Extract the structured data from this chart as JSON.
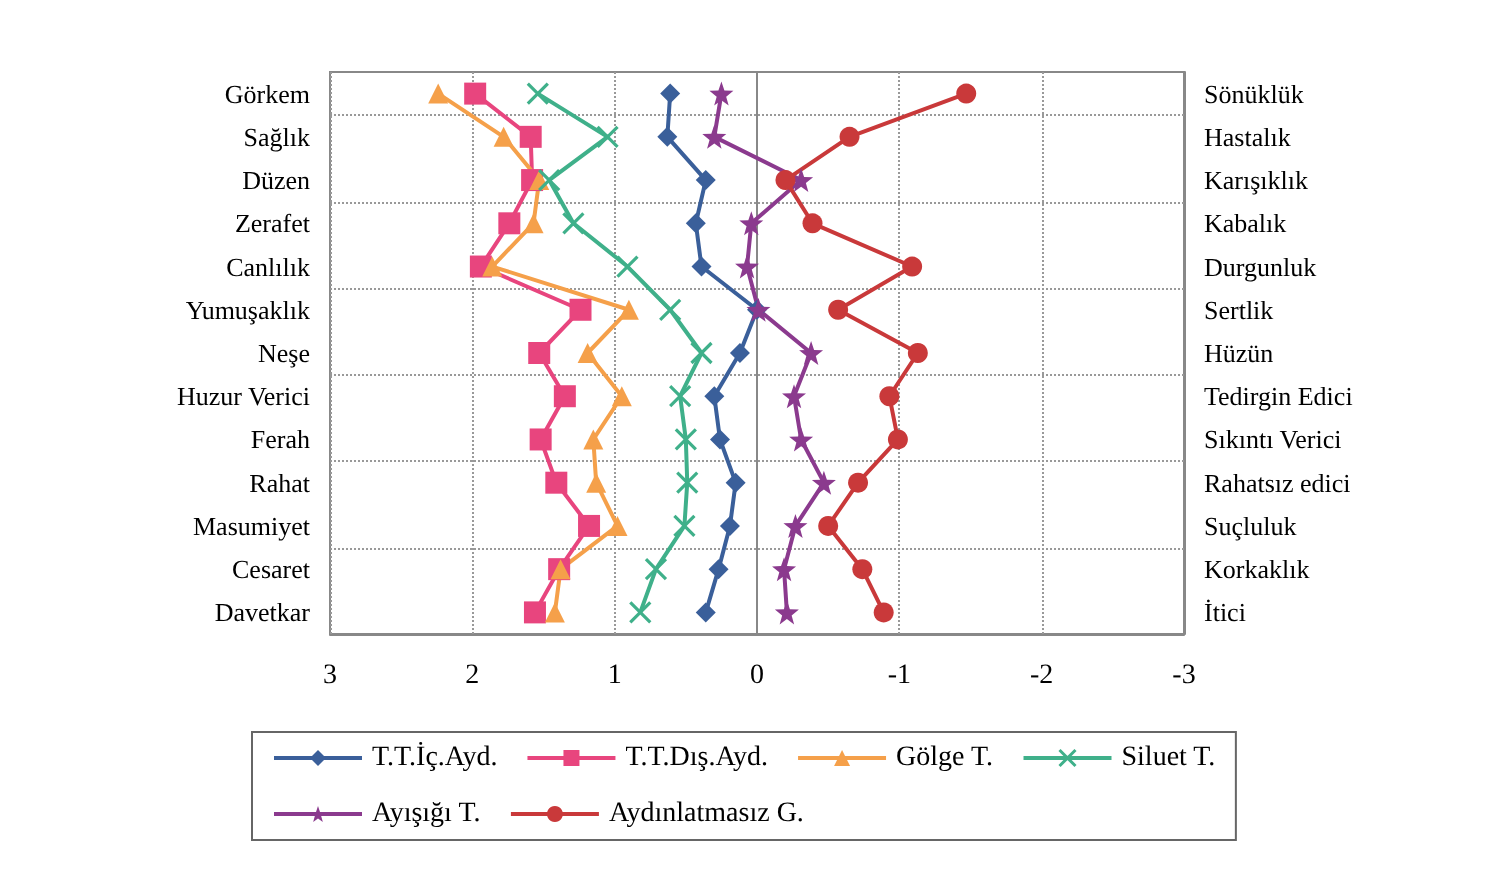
{
  "chart_data": {
    "type": "line",
    "orientation": "horizontal",
    "categories": [
      "Görkem",
      "Sağlık",
      "Düzen",
      "Zerafet",
      "Canlılık",
      "Yumuşaklık",
      "Neşe",
      "Huzur Verici",
      "Ferah",
      "Rahat",
      "Masumiyet",
      "Cesaret",
      "Davetkar"
    ],
    "y2_categories": [
      "Sönüklük",
      "Hastalık",
      "Karışıklık",
      "Kabalık",
      "Durgunluk",
      "Sertlik",
      "Hüzün",
      "Tedirgin Edici",
      "Sıkıntı Verici",
      "Rahatsız edici",
      "Suçluluk",
      "Korkaklık",
      "İtici"
    ],
    "series": [
      {
        "name": "T.T.İç.Ayd.",
        "color": "#3a5f9a",
        "marker": "diamond",
        "values": [
          0.61,
          0.63,
          0.36,
          0.43,
          0.39,
          0.0,
          0.12,
          0.3,
          0.26,
          0.15,
          0.19,
          0.27,
          0.36
        ]
      },
      {
        "name": "T.T.Dış.Ayd.",
        "color": "#e8457e",
        "marker": "square",
        "values": [
          1.98,
          1.59,
          1.58,
          1.74,
          1.94,
          1.24,
          1.53,
          1.35,
          1.52,
          1.41,
          1.18,
          1.39,
          1.56
        ]
      },
      {
        "name": "Gölge T.",
        "color": "#f5a04a",
        "marker": "triangle",
        "values": [
          2.24,
          1.78,
          1.53,
          1.57,
          1.86,
          0.9,
          1.19,
          0.95,
          1.15,
          1.13,
          0.98,
          1.38,
          1.42
        ]
      },
      {
        "name": "Siluet T.",
        "color": "#3fb08a",
        "marker": "cross",
        "values": [
          1.54,
          1.05,
          1.46,
          1.29,
          0.91,
          0.61,
          0.39,
          0.54,
          0.5,
          0.49,
          0.51,
          0.71,
          0.82
        ]
      },
      {
        "name": "Ayışığı T.",
        "color": "#8b3a8e",
        "marker": "star",
        "values": [
          0.25,
          0.3,
          -0.31,
          0.04,
          0.07,
          -0.01,
          -0.38,
          -0.26,
          -0.31,
          -0.47,
          -0.27,
          -0.19,
          -0.21
        ]
      },
      {
        "name": "Aydınlatmasız G.",
        "color": "#c9393a",
        "marker": "circle",
        "values": [
          -1.47,
          -0.65,
          -0.2,
          -0.39,
          -1.09,
          -0.57,
          -1.13,
          -0.93,
          -0.99,
          -0.71,
          -0.5,
          -0.74,
          -0.89
        ]
      }
    ],
    "xlim": [
      3,
      -3
    ],
    "xticks": [
      3,
      2,
      1,
      0,
      -1,
      -2,
      -3
    ],
    "grid": true,
    "legend": "bottom"
  }
}
